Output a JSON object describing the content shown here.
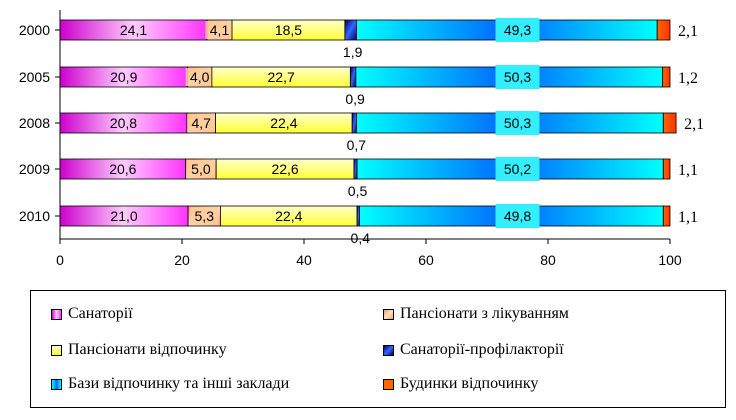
{
  "chart_data": {
    "type": "bar",
    "orientation": "horizontal",
    "stacked": true,
    "categories": [
      "2000",
      "2005",
      "2008",
      "2009",
      "2010"
    ],
    "series": [
      {
        "name": "Санаторії",
        "color": "#ff33ff",
        "values": [
          24.1,
          20.9,
          20.8,
          20.6,
          21.0
        ],
        "labels": [
          "24,1",
          "20,9",
          "20,8",
          "20,6",
          "21,0"
        ]
      },
      {
        "name": "Пансіонати з лікуванням",
        "color": "#ff9966",
        "values": [
          4.1,
          4.0,
          4.7,
          5.0,
          5.3
        ],
        "labels": [
          "4,1",
          "4,0",
          "4,7",
          "5,0",
          "5,3"
        ]
      },
      {
        "name": "Пансіонати відпочинку",
        "color": "#ffff66",
        "values": [
          18.5,
          22.7,
          22.4,
          22.6,
          22.4
        ],
        "labels": [
          "18,5",
          "22,7",
          "22,4",
          "22,6",
          "22,4"
        ]
      },
      {
        "name": "Санаторії-профілакторії",
        "color": "#0000cc",
        "values": [
          1.9,
          0.9,
          0.7,
          0.5,
          0.4
        ],
        "labels": [
          "1,9",
          "0,9",
          "0,7",
          "0,5",
          "0,4"
        ]
      },
      {
        "name": "Бази відпочинку та інші заклади",
        "color": "#00e5ff",
        "values": [
          49.3,
          50.3,
          50.3,
          50.2,
          49.8
        ],
        "labels": [
          "49,3",
          "50,3",
          "50,3",
          "50,2",
          "49,8"
        ]
      },
      {
        "name": "Будинки відпочинку",
        "color": "#ff6600",
        "values": [
          2.1,
          1.2,
          2.1,
          1.1,
          1.1
        ],
        "labels": [
          "2,1",
          "1,2",
          "2,1",
          "1,1",
          "1,1"
        ]
      }
    ],
    "xlim": [
      0,
      100
    ],
    "xticks": [
      "0",
      "20",
      "40",
      "60",
      "80",
      "100"
    ],
    "grid": false,
    "legend_position": "bottom"
  }
}
